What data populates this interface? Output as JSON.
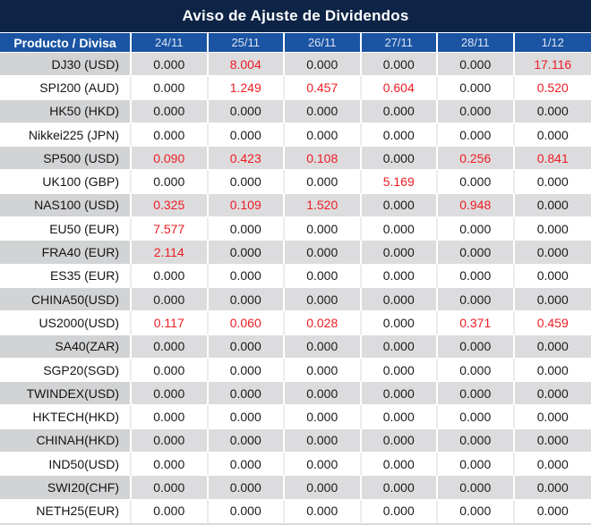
{
  "title": "Aviso de Ajuste de Dividendos",
  "colors": {
    "title_bg": "#0d2446",
    "header_bg": "#1a54a3",
    "header_text": "#dde4f2",
    "row_alt_label": "#d2d3d5",
    "row_alt_data": "#dcdcde",
    "value_text": "#1a1a1a",
    "value_highlight_red": "#ee1c23"
  },
  "table": {
    "product_header": "Producto / Divisa",
    "date_headers": [
      "24/11",
      "25/11",
      "26/11",
      "27/11",
      "28/11",
      "1/12"
    ],
    "rows": [
      {
        "product": "DJ30 (USD)",
        "values": [
          "0.000",
          "8.004",
          "0.000",
          "0.000",
          "0.000",
          "17.116"
        ]
      },
      {
        "product": "SPI200 (AUD)",
        "values": [
          "0.000",
          "1.249",
          "0.457",
          "0.604",
          "0.000",
          "0.520"
        ]
      },
      {
        "product": "HK50 (HKD)",
        "values": [
          "0.000",
          "0.000",
          "0.000",
          "0.000",
          "0.000",
          "0.000"
        ]
      },
      {
        "product": "Nikkei225 (JPN)",
        "values": [
          "0.000",
          "0.000",
          "0.000",
          "0.000",
          "0.000",
          "0.000"
        ]
      },
      {
        "product": "SP500 (USD)",
        "values": [
          "0.090",
          "0.423",
          "0.108",
          "0.000",
          "0.256",
          "0.841"
        ]
      },
      {
        "product": "UK100 (GBP)",
        "values": [
          "0.000",
          "0.000",
          "0.000",
          "5.169",
          "0.000",
          "0.000"
        ]
      },
      {
        "product": "NAS100 (USD)",
        "values": [
          "0.325",
          "0.109",
          "1.520",
          "0.000",
          "0.948",
          "0.000"
        ]
      },
      {
        "product": "EU50 (EUR)",
        "values": [
          "7.577",
          "0.000",
          "0.000",
          "0.000",
          "0.000",
          "0.000"
        ]
      },
      {
        "product": "FRA40 (EUR)",
        "values": [
          "2.114",
          "0.000",
          "0.000",
          "0.000",
          "0.000",
          "0.000"
        ]
      },
      {
        "product": "ES35 (EUR)",
        "values": [
          "0.000",
          "0.000",
          "0.000",
          "0.000",
          "0.000",
          "0.000"
        ]
      },
      {
        "product": "CHINA50(USD)",
        "values": [
          "0.000",
          "0.000",
          "0.000",
          "0.000",
          "0.000",
          "0.000"
        ]
      },
      {
        "product": "US2000(USD)",
        "values": [
          "0.117",
          "0.060",
          "0.028",
          "0.000",
          "0.371",
          "0.459"
        ]
      },
      {
        "product": "SA40(ZAR)",
        "values": [
          "0.000",
          "0.000",
          "0.000",
          "0.000",
          "0.000",
          "0.000"
        ]
      },
      {
        "product": "SGP20(SGD)",
        "values": [
          "0.000",
          "0.000",
          "0.000",
          "0.000",
          "0.000",
          "0.000"
        ]
      },
      {
        "product": "TWINDEX(USD)",
        "values": [
          "0.000",
          "0.000",
          "0.000",
          "0.000",
          "0.000",
          "0.000"
        ]
      },
      {
        "product": "HKTECH(HKD)",
        "values": [
          "0.000",
          "0.000",
          "0.000",
          "0.000",
          "0.000",
          "0.000"
        ]
      },
      {
        "product": "CHINAH(HKD)",
        "values": [
          "0.000",
          "0.000",
          "0.000",
          "0.000",
          "0.000",
          "0.000"
        ]
      },
      {
        "product": "IND50(USD)",
        "values": [
          "0.000",
          "0.000",
          "0.000",
          "0.000",
          "0.000",
          "0.000"
        ]
      },
      {
        "product": "SWI20(CHF)",
        "values": [
          "0.000",
          "0.000",
          "0.000",
          "0.000",
          "0.000",
          "0.000"
        ]
      },
      {
        "product": "NETH25(EUR)",
        "values": [
          "0.000",
          "0.000",
          "0.000",
          "0.000",
          "0.000",
          "0.000"
        ]
      }
    ]
  }
}
